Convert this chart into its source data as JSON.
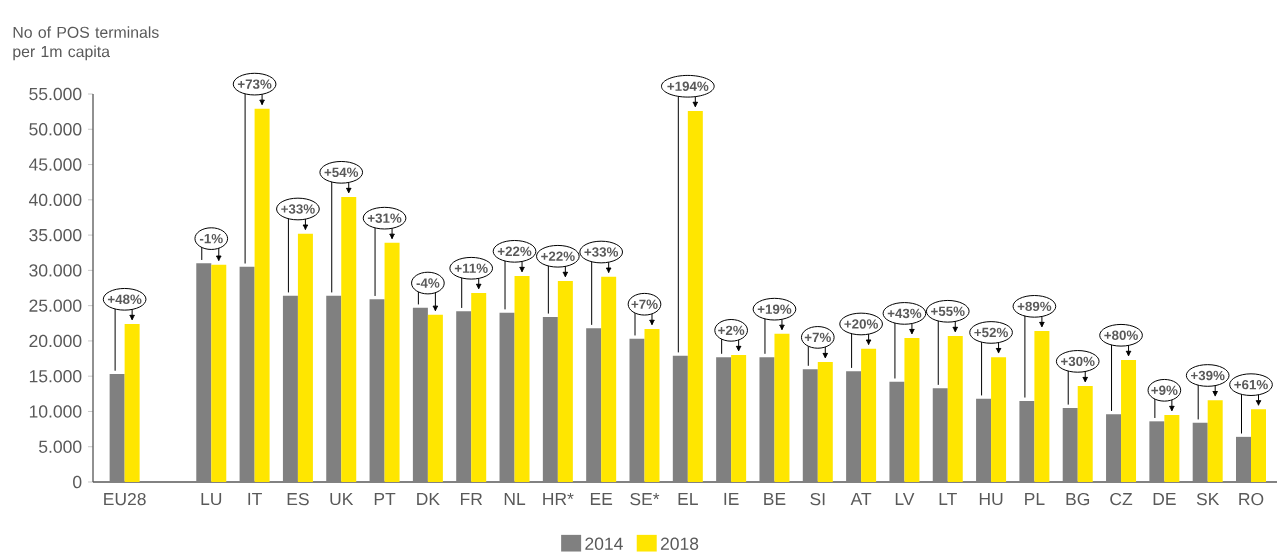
{
  "chart_data": {
    "type": "bar",
    "ylabel": "No of POS terminals per 1m capita",
    "categories": [
      "EU28",
      null,
      "LU",
      "IT",
      "ES",
      "UK",
      "PT",
      "DK",
      "FR",
      "NL",
      "HR*",
      "EE",
      "SE*",
      "EL",
      "IE",
      "BE",
      "SI",
      "AT",
      "LV",
      "LT",
      "HU",
      "PL",
      "BG",
      "CZ",
      "DE",
      "SK",
      "RO"
    ],
    "series": [
      {
        "name": "2014",
        "color": "#808080",
        "values": [
          15300,
          null,
          31000,
          30500,
          26400,
          26400,
          25900,
          24700,
          24200,
          24000,
          23400,
          21800,
          20300,
          17900,
          17700,
          17700,
          16000,
          15700,
          14200,
          13300,
          11800,
          11500,
          10500,
          9600,
          8600,
          8400,
          6400
        ]
      },
      {
        "name": "2018",
        "color": "#ffe600",
        "values": [
          22400,
          null,
          30800,
          52900,
          35200,
          40400,
          33900,
          23700,
          26800,
          29200,
          28500,
          29100,
          21700,
          52600,
          18000,
          21000,
          17000,
          18900,
          20400,
          20700,
          17700,
          21400,
          13600,
          17300,
          9500,
          11600,
          10300
        ]
      }
    ],
    "ylim": [
      0,
      55000
    ],
    "yticks": [
      {
        "value": 0,
        "label": "0"
      },
      {
        "value": 5000,
        "label": "5.000"
      },
      {
        "value": 10000,
        "label": "10.000"
      },
      {
        "value": 15000,
        "label": "15.000"
      },
      {
        "value": 20000,
        "label": "20.000"
      },
      {
        "value": 25000,
        "label": "25.000"
      },
      {
        "value": 30000,
        "label": "30.000"
      },
      {
        "value": 35000,
        "label": "35.000"
      },
      {
        "value": 40000,
        "label": "40.000"
      },
      {
        "value": 45000,
        "label": "45.000"
      },
      {
        "value": 50000,
        "label": "50.000"
      },
      {
        "value": 55000,
        "label": "55.000"
      }
    ],
    "legend": "bottom",
    "grid": false,
    "annotations": [
      {
        "text": "+48%",
        "x": "EU28",
        "y": 22400
      },
      {
        "text": "-1%",
        "x": "LU",
        "y": 30800
      },
      {
        "text": "+73%",
        "x": "IT",
        "y": 52900
      },
      {
        "text": "+33%",
        "x": "ES",
        "y": 35200
      },
      {
        "text": "+54%",
        "x": "UK",
        "y": 40400
      },
      {
        "text": "+31%",
        "x": "PT",
        "y": 33900
      },
      {
        "text": "-4%",
        "x": "DK",
        "y": 23700
      },
      {
        "text": "+11%",
        "x": "FR",
        "y": 26800
      },
      {
        "text": "+22%",
        "x": "NL",
        "y": 29200
      },
      {
        "text": "+22%",
        "x": "HR*",
        "y": 28500
      },
      {
        "text": "+33%",
        "x": "EE",
        "y": 29100
      },
      {
        "text": "+7%",
        "x": "SE*",
        "y": 21700
      },
      {
        "text": "+194%",
        "x": "EL",
        "y": 52600
      },
      {
        "text": "+2%",
        "x": "IE",
        "y": 18000
      },
      {
        "text": "+19%",
        "x": "BE",
        "y": 21000
      },
      {
        "text": "+7%",
        "x": "SI",
        "y": 17000
      },
      {
        "text": "+20%",
        "x": "AT",
        "y": 18900
      },
      {
        "text": "+43%",
        "x": "LV",
        "y": 20400
      },
      {
        "text": "+55%",
        "x": "LT",
        "y": 20700
      },
      {
        "text": "+52%",
        "x": "HU",
        "y": 17700
      },
      {
        "text": "+89%",
        "x": "PL",
        "y": 21400
      },
      {
        "text": "+30%",
        "x": "BG",
        "y": 13600
      },
      {
        "text": "+80%",
        "x": "CZ",
        "y": 17300
      },
      {
        "text": "+9%",
        "x": "DE",
        "y": 9500
      },
      {
        "text": "+39%",
        "x": "SK",
        "y": 11600
      },
      {
        "text": "+61%",
        "x": "RO",
        "y": 10300
      }
    ]
  }
}
